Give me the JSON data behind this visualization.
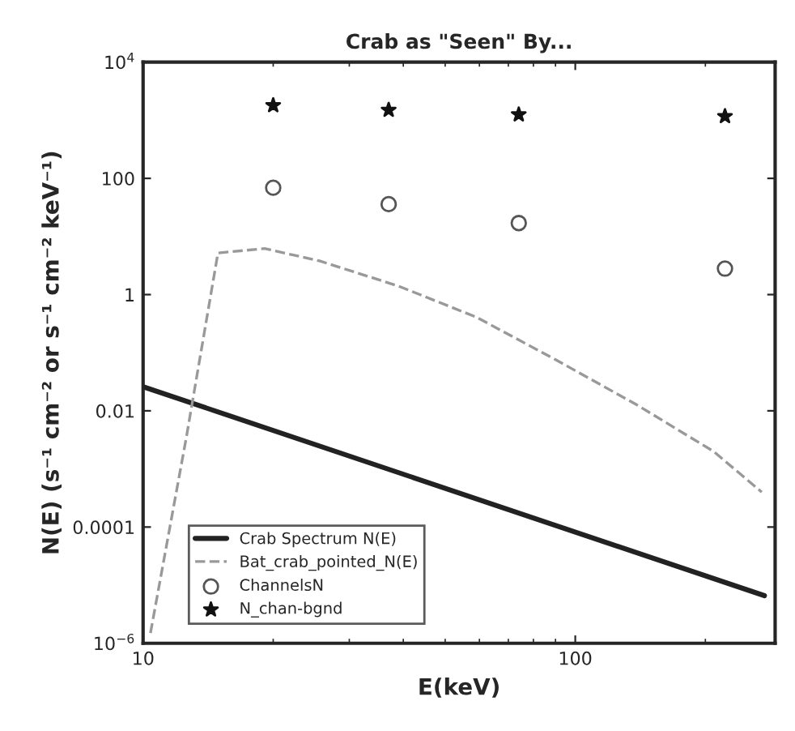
{
  "chart_data": {
    "type": "line",
    "title": "Crab as \"Seen\" By...",
    "xlabel": "E(keV)",
    "ylabel": "N(E) (s⁻¹ cm⁻² or s⁻¹ cm⁻² keV⁻¹)",
    "log": "xy",
    "xlim": [
      10,
      290
    ],
    "ylim": [
      1e-06,
      10000
    ],
    "xticks": [
      10,
      100
    ],
    "yticks": [
      {
        "value": 1e-06,
        "label": "10$^{−6}$"
      },
      {
        "value": 0.0001,
        "label": "0.0001"
      },
      {
        "value": 0.01,
        "label": "0.01"
      },
      {
        "value": 1,
        "label": "1"
      },
      {
        "value": 100,
        "label": "100"
      },
      {
        "value": 10000,
        "label": "10$^{4}$"
      }
    ],
    "legend": "bottom left",
    "grid": false,
    "series": [
      {
        "name": "Crab Spectrum N(E)",
        "line_style": "solid",
        "color": "#222222",
        "x": [
          10,
          274
        ],
        "values": [
          0.026,
          6.6e-06
        ]
      },
      {
        "name": "Bat_crab_pointed_N(E)",
        "line_style": "dashed",
        "color": "#999999",
        "x": [
          10.4,
          12.6,
          14.9,
          19.1,
          25.6,
          39,
          59,
          90,
          138,
          209,
          270
        ],
        "values": [
          1.5e-06,
          0.0036,
          5.2,
          6.2,
          3.8,
          1.4,
          0.41,
          0.076,
          0.013,
          0.002,
          0.0004
        ]
      },
      {
        "name": "ChannelsN",
        "type": "scatter",
        "marker": "circle",
        "color": "#555555",
        "x": [
          20,
          37,
          74,
          222
        ],
        "values": [
          69,
          36,
          17,
          2.8
        ]
      },
      {
        "name": "N_chan-bgnd",
        "type": "scatter",
        "marker": "star",
        "color": "#111111",
        "x": [
          20,
          37,
          74,
          222
        ],
        "values": [
          1800,
          1500,
          1250,
          1170
        ]
      }
    ]
  }
}
